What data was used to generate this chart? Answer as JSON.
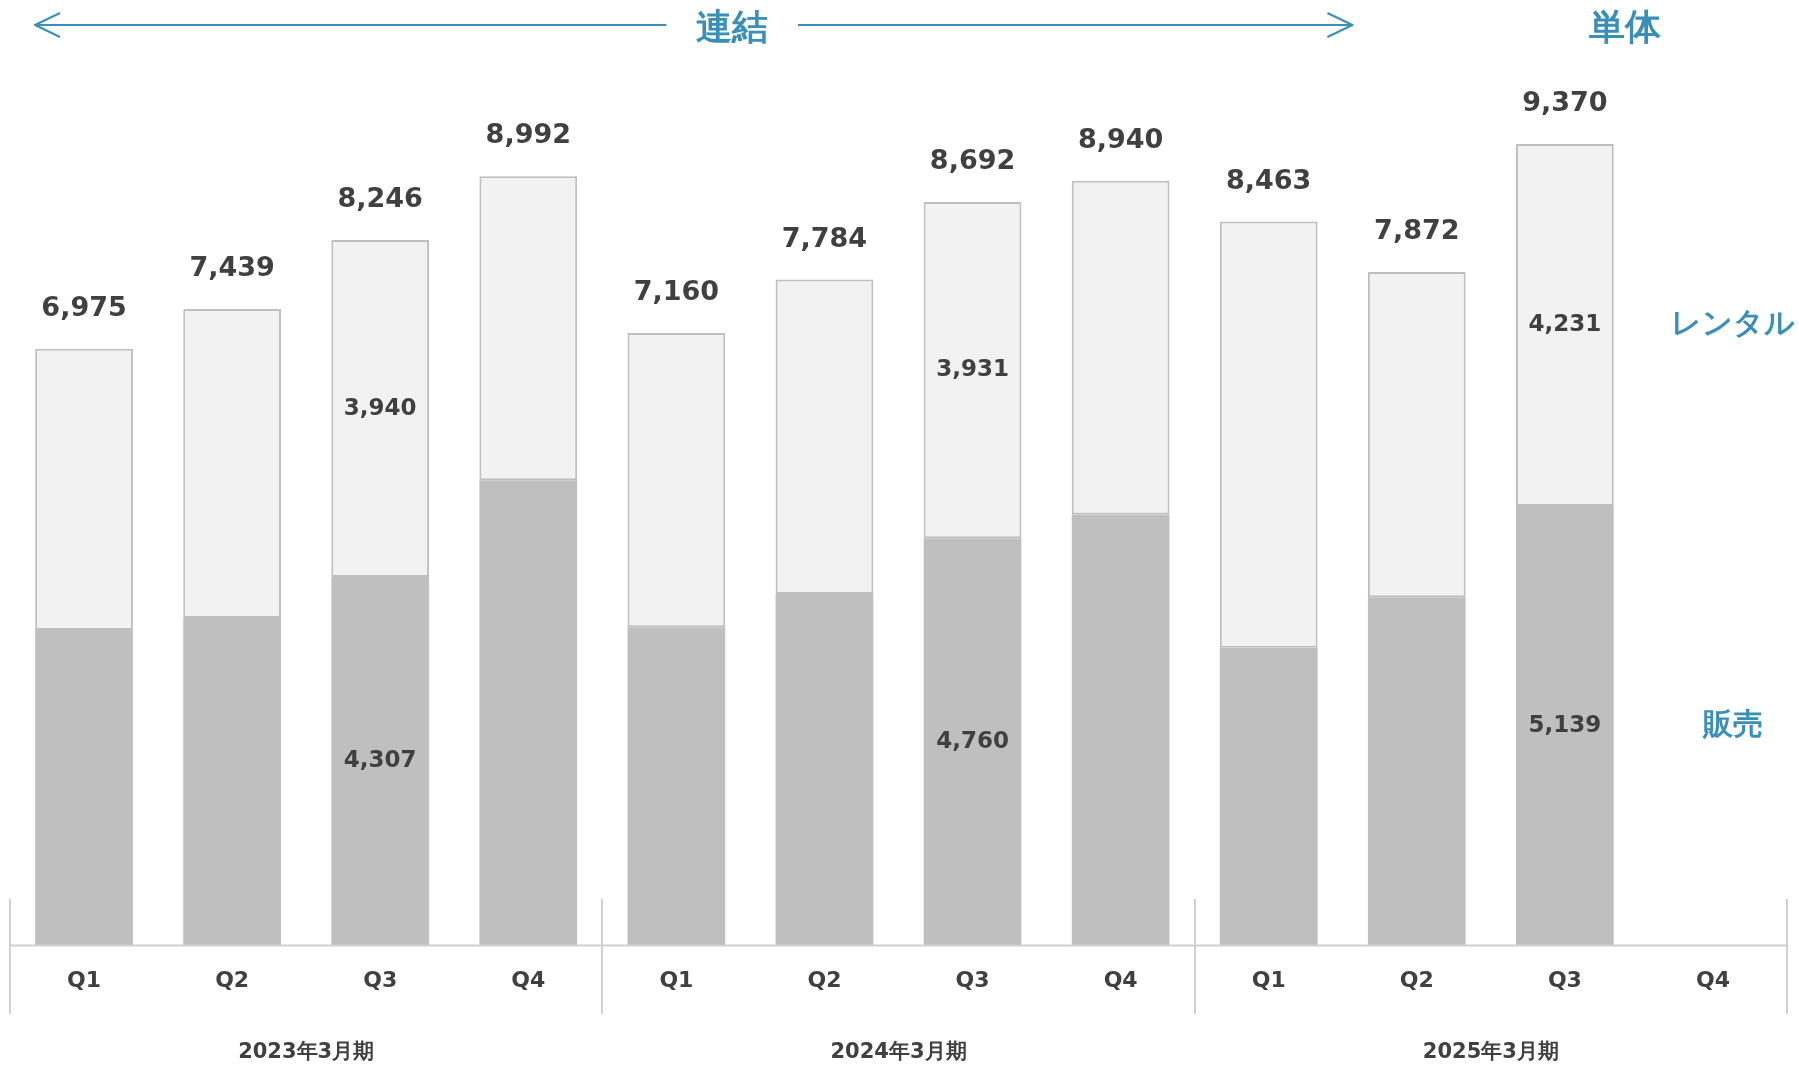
{
  "chart_data": {
    "type": "bar",
    "stacked": true,
    "legend": false,
    "grid": false,
    "categories": [
      "Q1",
      "Q2",
      "Q3",
      "Q4",
      "Q1",
      "Q2",
      "Q3",
      "Q4",
      "Q1",
      "Q2",
      "Q3",
      "Q4"
    ],
    "series": [
      {
        "name": "販売",
        "color": "#bfbfbf",
        "values": [
          3690,
          3830,
          4307,
          5440,
          3720,
          4110,
          4760,
          5040,
          3480,
          4070,
          5139,
          null
        ],
        "value_labels": [
          null,
          null,
          "4,307",
          null,
          null,
          null,
          "4,760",
          null,
          null,
          null,
          "5,139",
          null
        ]
      },
      {
        "name": "レンタル",
        "color": "#f2f2f2",
        "values": [
          3285,
          3609,
          3940,
          3552,
          3440,
          3674,
          3931,
          3900,
          4983,
          3802,
          4231,
          null
        ],
        "value_labels": [
          null,
          null,
          "3,940",
          null,
          null,
          null,
          "3,931",
          null,
          null,
          null,
          "4,231",
          null
        ]
      }
    ],
    "totals": [
      "6,975",
      "7,439",
      "8,246",
      "8,992",
      "7,160",
      "7,784",
      "8,692",
      "8,940",
      "8,463",
      "7,872",
      "9,370",
      null
    ],
    "annotations": [
      "連結",
      "単体",
      "2023年3月期",
      "2024年3月期",
      "2025年3月期"
    ]
  }
}
